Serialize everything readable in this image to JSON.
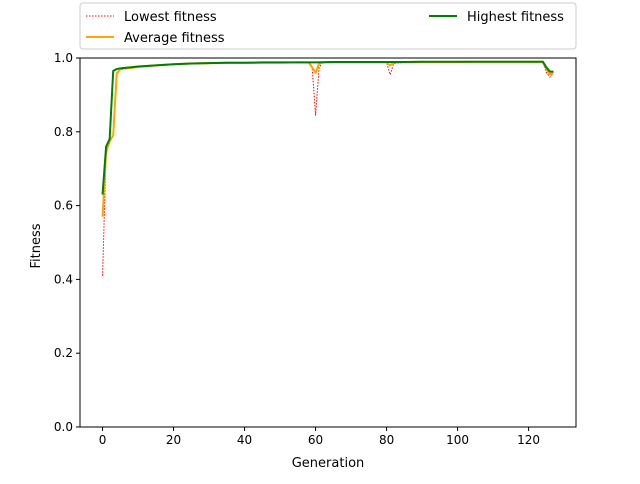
{
  "chart_data": {
    "type": "line",
    "xlabel": "Generation",
    "ylabel": "Fitness",
    "xlim": [
      -6.35,
      133.35
    ],
    "ylim": [
      0.0,
      1.0
    ],
    "xticks": [
      0,
      20,
      40,
      60,
      80,
      100,
      120
    ],
    "yticks": [
      0.0,
      0.2,
      0.4,
      0.6,
      0.8,
      1.0
    ],
    "xtick_labels": [
      "0",
      "20",
      "40",
      "60",
      "80",
      "100",
      "120"
    ],
    "ytick_labels": [
      "0.0",
      "0.2",
      "0.4",
      "0.6",
      "0.8",
      "1.0"
    ],
    "grid": false,
    "legend": {
      "placement": "above-plot",
      "entries": [
        "Lowest fitness",
        "Average fitness",
        "Highest fitness"
      ]
    },
    "series": [
      {
        "name": "Lowest fitness",
        "color": "#ff0000",
        "style": "dotted",
        "x": [
          0,
          1,
          2,
          3,
          4,
          5,
          6,
          8,
          10,
          15,
          20,
          25,
          30,
          35,
          40,
          45,
          50,
          55,
          58,
          59,
          60,
          61,
          62,
          65,
          70,
          75,
          78,
          80,
          81,
          82,
          85,
          90,
          95,
          100,
          105,
          110,
          115,
          120,
          124,
          125,
          126,
          127
        ],
        "y": [
          0.41,
          0.74,
          0.77,
          0.79,
          0.955,
          0.968,
          0.97,
          0.972,
          0.975,
          0.979,
          0.982,
          0.984,
          0.985,
          0.986,
          0.986,
          0.987,
          0.987,
          0.987,
          0.987,
          0.98,
          0.845,
          0.975,
          0.987,
          0.988,
          0.988,
          0.988,
          0.988,
          0.988,
          0.955,
          0.985,
          0.988,
          0.989,
          0.989,
          0.989,
          0.989,
          0.989,
          0.989,
          0.989,
          0.989,
          0.96,
          0.948,
          0.96
        ]
      },
      {
        "name": "Average fitness",
        "color": "#ffa500",
        "style": "solid",
        "x": [
          0,
          1,
          2,
          3,
          4,
          5,
          6,
          8,
          10,
          15,
          20,
          25,
          30,
          35,
          40,
          45,
          50,
          55,
          58,
          59,
          60,
          61,
          62,
          65,
          70,
          75,
          78,
          80,
          81,
          82,
          85,
          90,
          95,
          100,
          105,
          110,
          115,
          120,
          124,
          125,
          126,
          127
        ],
        "y": [
          0.57,
          0.745,
          0.775,
          0.79,
          0.958,
          0.97,
          0.972,
          0.973,
          0.976,
          0.98,
          0.983,
          0.985,
          0.986,
          0.987,
          0.987,
          0.987,
          0.987,
          0.988,
          0.988,
          0.975,
          0.96,
          0.985,
          0.988,
          0.988,
          0.988,
          0.988,
          0.988,
          0.988,
          0.98,
          0.988,
          0.989,
          0.989,
          0.989,
          0.989,
          0.99,
          0.99,
          0.99,
          0.99,
          0.99,
          0.97,
          0.955,
          0.962
        ]
      },
      {
        "name": "Highest fitness",
        "color": "#008000",
        "style": "solid",
        "x": [
          0,
          1,
          2,
          3,
          4,
          5,
          6,
          8,
          10,
          15,
          20,
          25,
          30,
          35,
          40,
          45,
          50,
          55,
          60,
          65,
          70,
          75,
          80,
          85,
          90,
          95,
          100,
          105,
          110,
          115,
          120,
          124,
          125,
          126,
          127
        ],
        "y": [
          0.63,
          0.76,
          0.78,
          0.965,
          0.97,
          0.972,
          0.973,
          0.975,
          0.977,
          0.98,
          0.983,
          0.985,
          0.986,
          0.987,
          0.987,
          0.988,
          0.988,
          0.988,
          0.988,
          0.989,
          0.989,
          0.989,
          0.989,
          0.989,
          0.99,
          0.99,
          0.99,
          0.99,
          0.99,
          0.99,
          0.99,
          0.99,
          0.975,
          0.963,
          0.963
        ]
      }
    ]
  }
}
